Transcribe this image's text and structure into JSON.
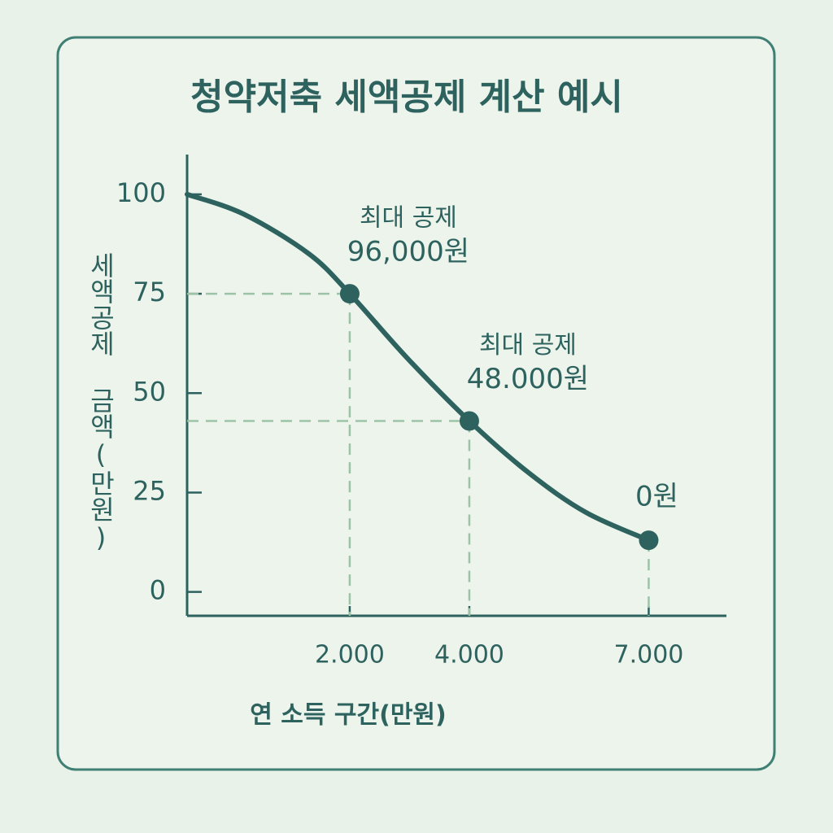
{
  "chart_data": {
    "type": "line",
    "title": "청약저축 세액공제 계산 예시",
    "x_label": "연 소득 구간(만원)",
    "y_label": "세액공제 금액(만원)",
    "series": [
      {
        "color": "#2d625f",
        "x": [
          -720,
          230,
          1320,
          2000,
          2950,
          4000,
          4990,
          5950,
          7000
        ],
        "values": [
          100,
          95,
          85,
          75,
          59,
          43,
          30,
          20,
          13
        ]
      }
    ],
    "points": {
      "color": "#2d625f",
      "x": [
        2000,
        4000,
        7000
      ],
      "values": [
        75,
        43,
        13
      ]
    },
    "annotations": [
      [
        "최대 공제",
        "96,000원"
      ],
      [
        "최대 공제",
        "48.000원"
      ],
      [
        "0원"
      ]
    ],
    "xlim": [
      -720,
      8300
    ],
    "ylim": [
      -6,
      110
    ],
    "xticks": [
      {
        "value": 2000,
        "label": "2.000"
      },
      {
        "value": 4000,
        "label": "4.000"
      },
      {
        "value": 7000,
        "label": "7.000"
      }
    ],
    "yticks": [
      0,
      25,
      50,
      75,
      100
    ],
    "grid": false
  }
}
